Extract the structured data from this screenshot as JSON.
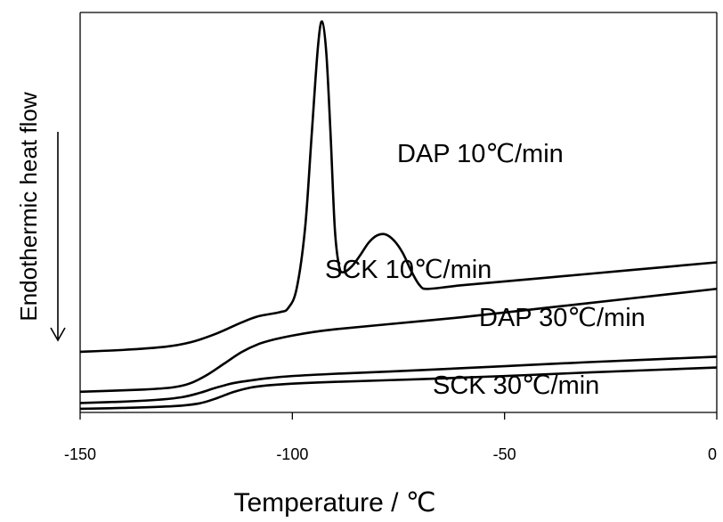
{
  "chart_data": {
    "type": "line",
    "title": "",
    "xlabel": "Temperature / ℃",
    "ylabel": "Endothermic heat flow",
    "xlim": [
      -150,
      0
    ],
    "xticks": [
      -150,
      -100,
      -50,
      0
    ],
    "grid": false,
    "legend": "none (series labelled inline)",
    "y_direction_arrow": "down",
    "series": [
      {
        "name": "DAP 10℃/min",
        "x": [
          -150,
          -140,
          -130,
          -124,
          -118,
          -112,
          -108,
          -103,
          -101,
          -99,
          -97,
          -95.5,
          -94,
          -93,
          -92,
          -91,
          -90,
          -89,
          -88,
          -86,
          -84,
          -82,
          -80,
          -78,
          -76,
          -74,
          -72,
          -70,
          -68,
          -60,
          -40,
          -20,
          0
        ],
        "y": [
          0.5,
          0.9,
          1.6,
          2.6,
          4.5,
          7.0,
          8.4,
          9.3,
          10.2,
          14.5,
          28.0,
          48.0,
          68.0,
          74.0,
          67.0,
          49.0,
          28.0,
          19.6,
          18.2,
          19.5,
          22.0,
          24.8,
          26.4,
          26.6,
          25.2,
          22.5,
          18.5,
          15.3,
          14.5,
          15.3,
          17.0,
          18.7,
          20.4
        ]
      },
      {
        "name": "SCK 10℃/min",
        "x": [
          -150,
          -135,
          -128,
          -124,
          -120,
          -116,
          -112,
          -108,
          -104,
          -100,
          -95,
          -90,
          -80,
          -60,
          -40,
          -20,
          0
        ],
        "y": [
          -8.4,
          -7.9,
          -7.4,
          -6.5,
          -4.6,
          -2.1,
          0.4,
          2.2,
          3.3,
          4.1,
          4.9,
          5.5,
          6.4,
          8.2,
          10.3,
          12.4,
          14.5
        ]
      },
      {
        "name": "DAP 30℃/min",
        "x": [
          -150,
          -140,
          -132,
          -126,
          -122,
          -118,
          -114,
          -110,
          -106,
          -100,
          -90,
          -70,
          -50,
          -30,
          0
        ],
        "y": [
          -10.9,
          -10.6,
          -10.2,
          -9.6,
          -8.7,
          -7.5,
          -6.5,
          -5.9,
          -5.4,
          -4.9,
          -4.4,
          -3.6,
          -2.7,
          -1.8,
          -0.6
        ]
      },
      {
        "name": "SCK 30℃/min",
        "x": [
          -150,
          -140,
          -128,
          -122,
          -118,
          -114,
          -110,
          -106,
          -100,
          -90,
          -70,
          -50,
          -30,
          0
        ],
        "y": [
          -12.2,
          -12.0,
          -11.6,
          -11.0,
          -9.9,
          -8.5,
          -7.5,
          -7.0,
          -6.6,
          -6.2,
          -5.6,
          -4.9,
          -4.1,
          -3.0
        ]
      }
    ]
  }
}
